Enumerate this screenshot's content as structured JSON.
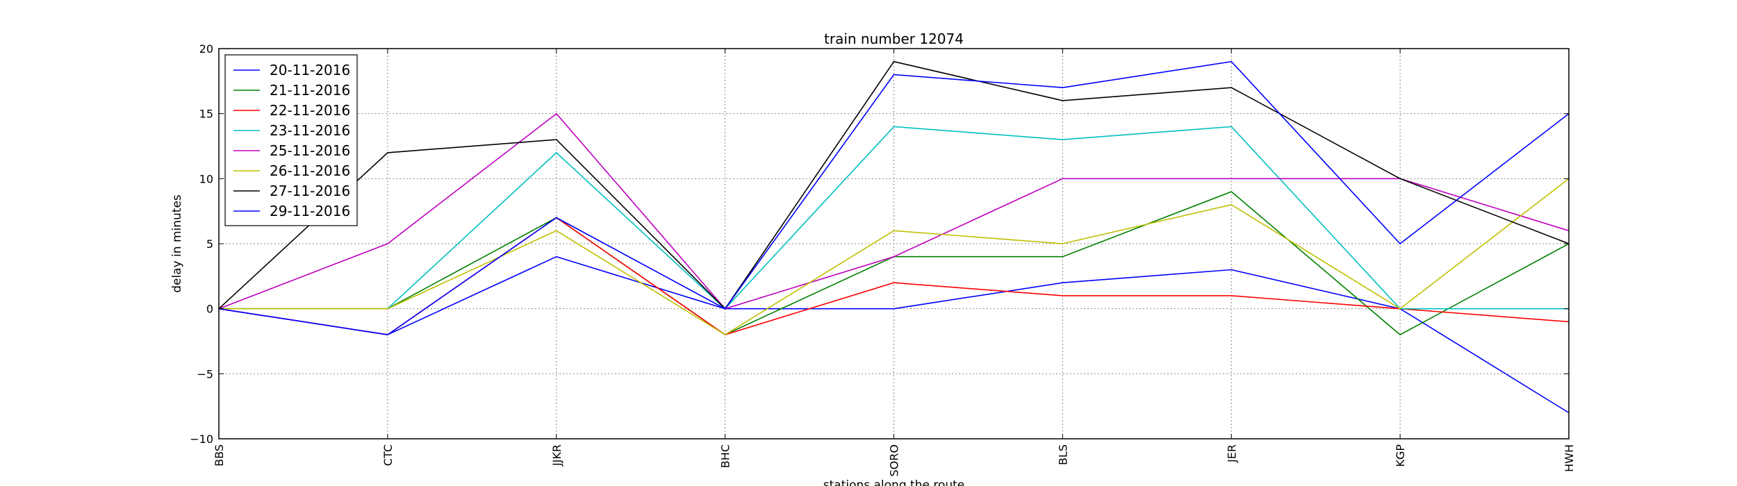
{
  "chart_data": {
    "type": "line",
    "title": "train number 12074",
    "xlabel": "stations along the route",
    "ylabel": "delay in minutes",
    "categories": [
      "BBS",
      "CTC",
      "JJKR",
      "BHC",
      "SORO",
      "BLS",
      "JER",
      "KGP",
      "HWH"
    ],
    "ylim": [
      -10,
      20
    ],
    "yticks": [
      -10,
      -5,
      0,
      5,
      10,
      15,
      20
    ],
    "ytick_labels": [
      "−10",
      "−5",
      "0",
      "5",
      "10",
      "15",
      "20"
    ],
    "grid": true,
    "legend_position": "top-left",
    "series": [
      {
        "name": "20-11-2016",
        "color": "#0000ff",
        "values": [
          0,
          -2,
          4,
          0,
          0,
          2,
          3,
          0,
          -8
        ]
      },
      {
        "name": "21-11-2016",
        "color": "#008000",
        "values": [
          0,
          0,
          7,
          -2,
          4,
          4,
          9,
          -2,
          5
        ]
      },
      {
        "name": "22-11-2016",
        "color": "#ff0000",
        "values": [
          0,
          -2,
          7,
          -2,
          2,
          1,
          1,
          0,
          -1
        ]
      },
      {
        "name": "23-11-2016",
        "color": "#00bfbf",
        "values": [
          0,
          0,
          12,
          0,
          14,
          13,
          14,
          0,
          0
        ]
      },
      {
        "name": "25-11-2016",
        "color": "#bf00bf",
        "values": [
          0,
          5,
          15,
          0,
          4,
          10,
          10,
          10,
          6
        ]
      },
      {
        "name": "26-11-2016",
        "color": "#bfbf00",
        "values": [
          0,
          0,
          6,
          -2,
          6,
          5,
          8,
          0,
          10
        ]
      },
      {
        "name": "27-11-2016",
        "color": "#000000",
        "values": [
          0,
          12,
          13,
          0,
          19,
          16,
          17,
          10,
          5
        ]
      },
      {
        "name": "29-11-2016",
        "color": "#0000ff",
        "values": [
          0,
          -2,
          7,
          0,
          18,
          17,
          19,
          5,
          15
        ]
      }
    ]
  }
}
